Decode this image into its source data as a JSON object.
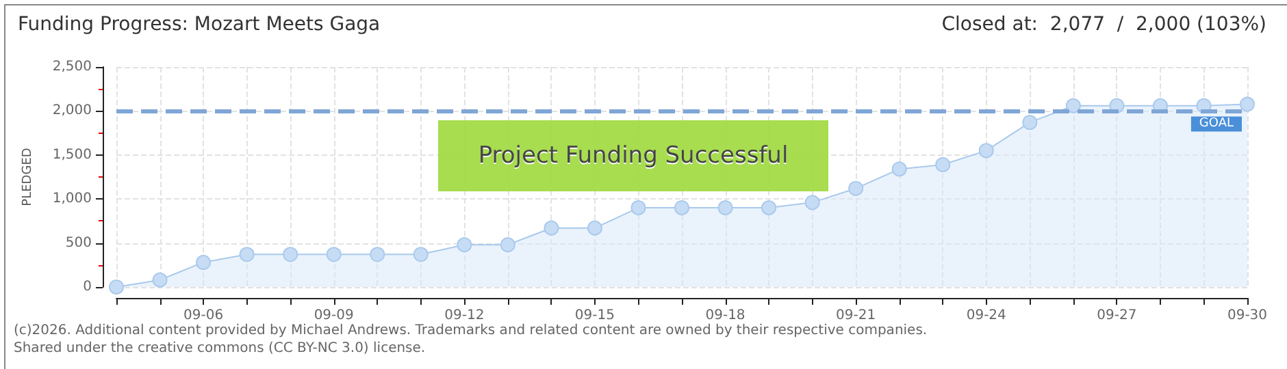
{
  "chart_data": {
    "type": "area",
    "title": "Funding Progress: Mozart Meets Gaga",
    "subtitle": "Closed at:  2,077  /  2,000 (103%)",
    "ylabel": "PLEDGED",
    "categories": [
      null,
      null,
      "09-06",
      null,
      null,
      "09-09",
      null,
      null,
      "09-12",
      null,
      null,
      "09-15",
      null,
      null,
      "09-18",
      null,
      null,
      "09-21",
      null,
      null,
      "09-24",
      null,
      null,
      "09-27",
      null,
      null,
      "09-30"
    ],
    "series": [
      {
        "color": "#a9c9ec",
        "values": [
          0,
          80,
          280,
          370,
          370,
          370,
          370,
          370,
          480,
          480,
          670,
          670,
          900,
          900,
          900,
          900,
          960,
          1120,
          1340,
          1390,
          1550,
          1870,
          2060,
          2060,
          2060,
          2060,
          2077
        ]
      }
    ],
    "ylim": [
      0,
      2500
    ],
    "yticks": [
      0,
      500,
      {
        "value": 1000,
        "label": "1,000"
      },
      {
        "value": 1500,
        "label": "1,500"
      },
      {
        "value": 2000,
        "label": "2,000"
      },
      {
        "value": 2500,
        "label": "2,500"
      }
    ],
    "grid": true,
    "marker": "circle",
    "ref_lines": [
      {
        "axis": "y",
        "value": 2000,
        "label": "GOAL",
        "color": "#7fa6d6",
        "line_style": "dashed"
      }
    ],
    "annotations": [
      "Project Funding Successful",
      "(c)2026. Additional content provided by Michael Andrews. Trademarks and related content are owned by their respective companies.",
      "Shared under the creative commons (CC BY-NC 3.0) license."
    ]
  }
}
